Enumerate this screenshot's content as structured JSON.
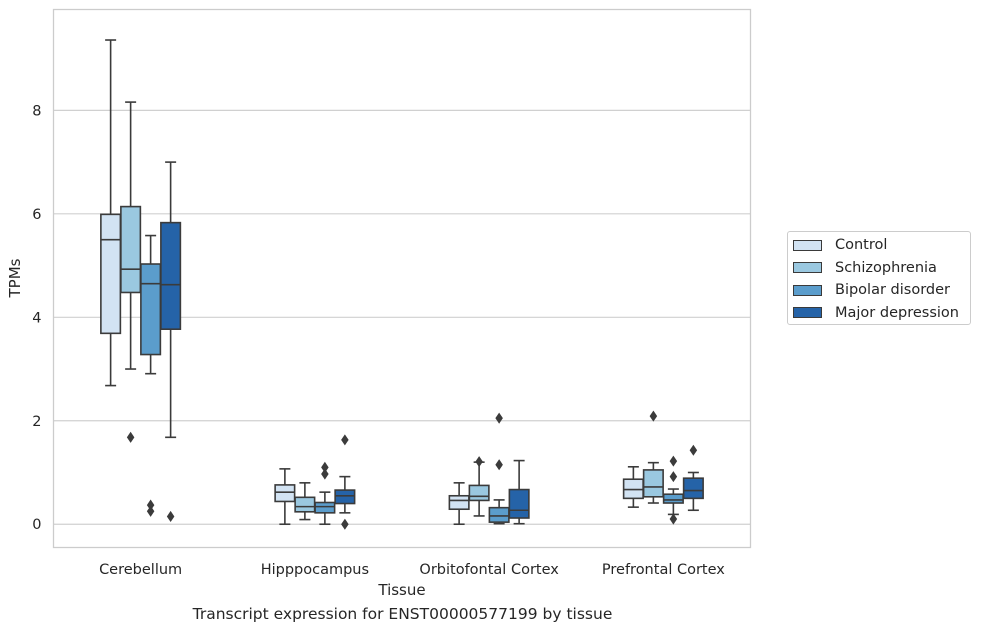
{
  "chart_data": {
    "type": "box",
    "xlabel": "Tissue",
    "ylabel": "TPMs",
    "caption": "Transcript expression for ENST00000577199 by tissue",
    "categories": [
      "Cerebellum",
      "Hipppocampus",
      "Orbitofontal Cortex",
      "Prefrontal Cortex"
    ],
    "ylim": [
      -0.45,
      9.95
    ],
    "yticks": [
      0,
      2,
      4,
      6,
      8
    ],
    "grid": true,
    "legend_position": "right",
    "series": [
      {
        "name": "Control",
        "color": "#d2e3f3",
        "boxes": [
          {
            "whislo": 2.68,
            "q1": 3.69,
            "med": 5.5,
            "q3": 5.99,
            "whishi": 9.36,
            "fliers": []
          },
          {
            "whislo": 0.0,
            "q1": 0.44,
            "med": 0.62,
            "q3": 0.76,
            "whishi": 1.07,
            "fliers": []
          },
          {
            "whislo": 0.0,
            "q1": 0.29,
            "med": 0.46,
            "q3": 0.55,
            "whishi": 0.8,
            "fliers": []
          },
          {
            "whislo": 0.33,
            "q1": 0.5,
            "med": 0.67,
            "q3": 0.87,
            "whishi": 1.11,
            "fliers": []
          }
        ]
      },
      {
        "name": "Schizophrenia",
        "color": "#9ac8e0",
        "boxes": [
          {
            "whislo": 3.0,
            "q1": 4.48,
            "med": 4.93,
            "q3": 6.14,
            "whishi": 8.16,
            "fliers": [
              1.68
            ]
          },
          {
            "whislo": 0.09,
            "q1": 0.24,
            "med": 0.34,
            "q3": 0.52,
            "whishi": 0.8,
            "fliers": []
          },
          {
            "whislo": 0.16,
            "q1": 0.46,
            "med": 0.54,
            "q3": 0.75,
            "whishi": 1.2,
            "fliers": [
              1.21
            ]
          },
          {
            "whislo": 0.41,
            "q1": 0.53,
            "med": 0.72,
            "q3": 1.05,
            "whishi": 1.19,
            "fliers": [
              2.09
            ]
          }
        ]
      },
      {
        "name": "Bipolar disorder",
        "color": "#5b9dcc",
        "boxes": [
          {
            "whislo": 2.91,
            "q1": 3.28,
            "med": 4.65,
            "q3": 5.03,
            "whishi": 5.58,
            "fliers": [
              0.37,
              0.25
            ]
          },
          {
            "whislo": 0.0,
            "q1": 0.22,
            "med": 0.34,
            "q3": 0.42,
            "whishi": 0.62,
            "fliers": [
              1.1,
              0.97
            ]
          },
          {
            "whislo": 0.01,
            "q1": 0.04,
            "med": 0.16,
            "q3": 0.32,
            "whishi": 0.47,
            "fliers": [
              2.05,
              1.15
            ]
          },
          {
            "whislo": 0.19,
            "q1": 0.41,
            "med": 0.47,
            "q3": 0.58,
            "whishi": 0.68,
            "fliers": [
              1.22,
              0.92,
              0.1
            ]
          }
        ]
      },
      {
        "name": "Major depression",
        "color": "#2563a8",
        "boxes": [
          {
            "whislo": 1.68,
            "q1": 3.77,
            "med": 4.63,
            "q3": 5.83,
            "whishi": 7.0,
            "fliers": [
              0.15
            ]
          },
          {
            "whislo": 0.22,
            "q1": 0.4,
            "med": 0.55,
            "q3": 0.66,
            "whishi": 0.92,
            "fliers": [
              1.63,
              0.0
            ]
          },
          {
            "whislo": 0.01,
            "q1": 0.12,
            "med": 0.27,
            "q3": 0.67,
            "whishi": 1.23,
            "fliers": []
          },
          {
            "whislo": 0.27,
            "q1": 0.5,
            "med": 0.65,
            "q3": 0.89,
            "whishi": 1.0,
            "fliers": [
              1.43
            ]
          }
        ]
      }
    ]
  }
}
